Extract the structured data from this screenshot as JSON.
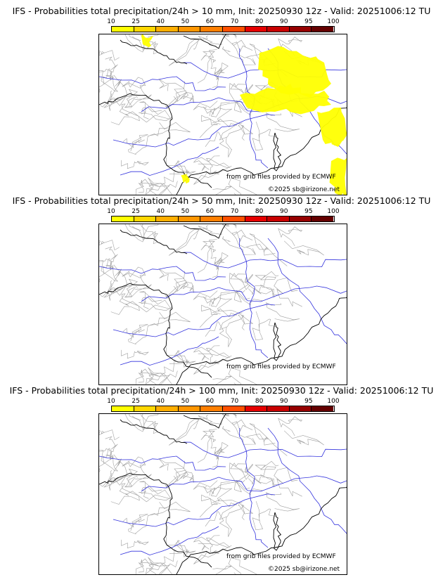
{
  "panels": [
    {
      "title": "IFS - Probabilities total precipitation/24h > 10 mm, Init: 20250930 12z - Valid: 20251006:12 TU",
      "has_yellow": true
    },
    {
      "title": "IFS - Probabilities total precipitation/24h > 50 mm, Init: 20250930 12z - Valid: 20251006:12 TU",
      "has_yellow": false
    },
    {
      "title": "IFS - Probabilities total precipitation/24h > 100 mm, Init: 20250930 12z - Valid: 20251006:12 TU",
      "has_yellow": false
    }
  ],
  "colorbar": {
    "ticks": [
      "10",
      "25",
      "40",
      "50",
      "60",
      "70",
      "80",
      "90",
      "95",
      "100"
    ],
    "colors": [
      "#ffff00",
      "#ffd700",
      "#ffae00",
      "#ff9600",
      "#ff7f00",
      "#ff5000",
      "#e60000",
      "#c80000",
      "#960000",
      "#640000"
    ]
  },
  "credits": {
    "source": "from grib files provided by ECMWF",
    "copyright": "©2025 sb@irizone.net"
  },
  "map_colors": {
    "coast": "#000000",
    "rivers": "#3333dd",
    "borders": "#a0a0a0",
    "probability_fill": "#ffff00"
  }
}
